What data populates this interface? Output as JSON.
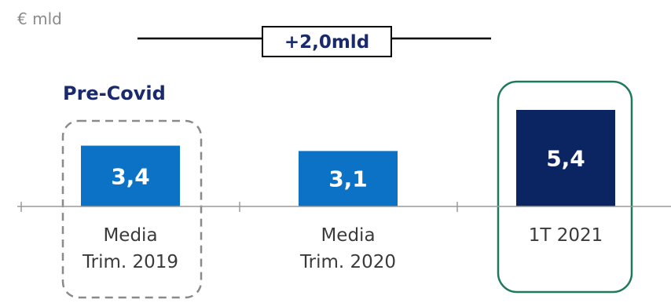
{
  "chart_data": {
    "type": "bar",
    "unit_label": "€ mld",
    "categories": [
      [
        "Media",
        "Trim. 2019"
      ],
      [
        "Media",
        "Trim. 2020"
      ],
      [
        "1T 2021"
      ]
    ],
    "values": [
      3.4,
      3.1,
      5.4
    ],
    "value_labels": [
      "3,4",
      "3,1",
      "5,4"
    ],
    "bar_colors": [
      "#0b72c6",
      "#0b72c6",
      "#0b2462"
    ],
    "delta_label": "+2,0mld",
    "precovid_label": "Pre-Covid",
    "highlight_color": "#1f7a5c",
    "dashed_box_color": "#8a8a8a",
    "title_color": "#1a2a6c",
    "ylim": [
      0,
      5.4
    ]
  }
}
